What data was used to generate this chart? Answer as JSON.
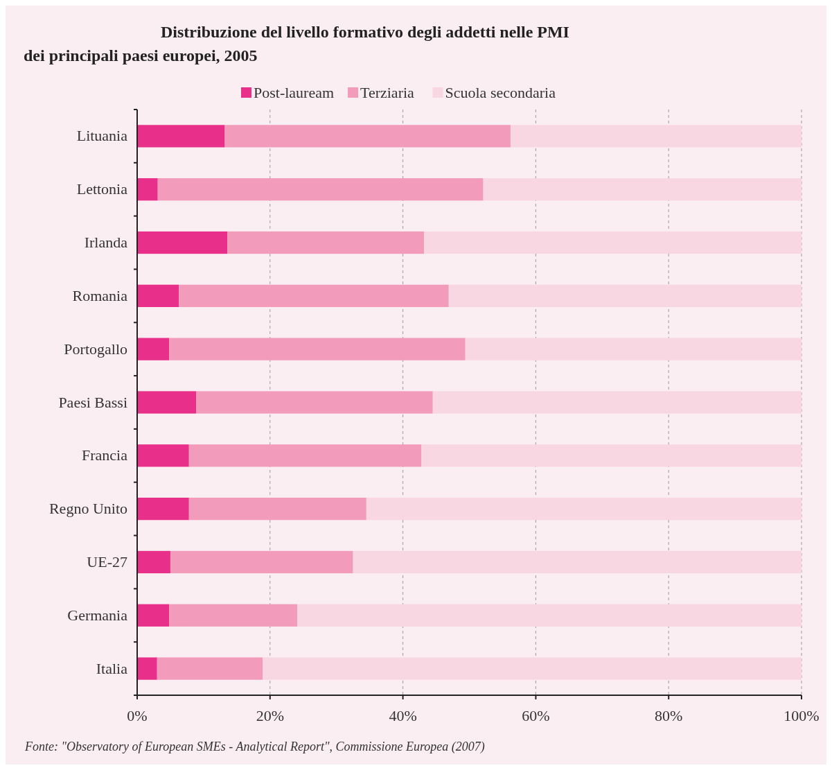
{
  "chart_data": {
    "type": "bar",
    "orientation": "horizontal",
    "stacked": true,
    "title": "Distribuzione del livello formativo degli addetti nelle PMI dei principali paesi europei, 2005",
    "categories": [
      "Lituania",
      "Lettonia",
      "Irlanda",
      "Romania",
      "Portogallo",
      "Paesi Bassi",
      "Francia",
      "Regno Unito",
      "UE-27",
      "Germania",
      "Italia"
    ],
    "series": [
      {
        "name": "Post-lauream",
        "color": "#e8308a",
        "values": [
          13.2,
          3.1,
          13.6,
          6.3,
          4.8,
          8.9,
          7.8,
          7.8,
          5.0,
          4.8,
          3.0
        ]
      },
      {
        "name": "Terziaria",
        "color": "#f29bbb",
        "values": [
          43.0,
          49.0,
          29.6,
          40.6,
          44.6,
          35.6,
          35.0,
          26.7,
          27.5,
          19.3,
          15.9
        ]
      },
      {
        "name": "Scuola secondaria",
        "color": "#f8d6e2",
        "values": [
          43.8,
          47.9,
          56.8,
          53.1,
          50.6,
          55.5,
          57.2,
          65.5,
          67.5,
          75.9,
          81.1
        ]
      }
    ],
    "xlim": [
      0,
      100
    ],
    "xticks": [
      {
        "value": 0,
        "label": "0%"
      },
      {
        "value": 20,
        "label": "20%"
      },
      {
        "value": 40,
        "label": "40%"
      },
      {
        "value": 60,
        "label": "60%"
      },
      {
        "value": 80,
        "label": "80%"
      },
      {
        "value": 100,
        "label": "100%"
      }
    ],
    "grid": "x",
    "legend": "top",
    "annotations": [
      "Fonte: \"Observatory of European SMEs - Analytical Report\", Commissione Europea (2007)"
    ]
  }
}
